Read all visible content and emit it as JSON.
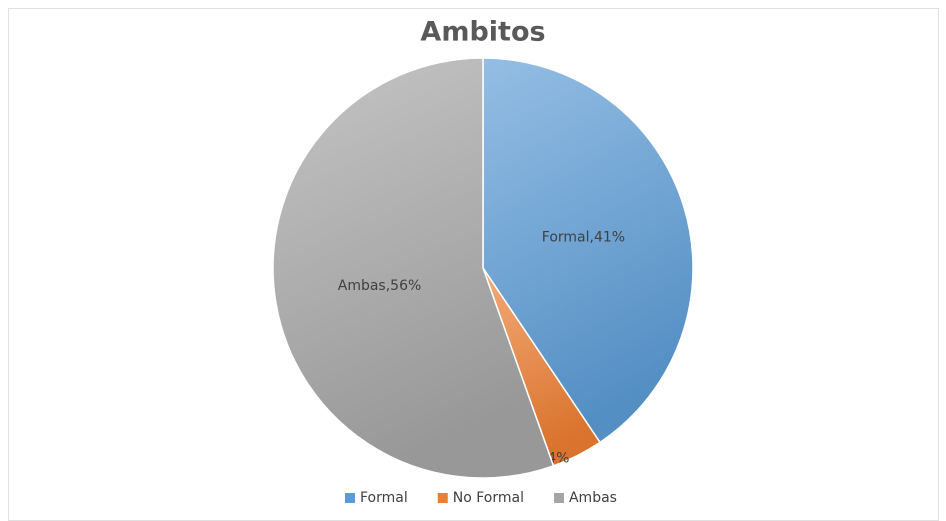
{
  "chart_data": {
    "type": "pie",
    "title": "Ambitos",
    "categories": [
      "Formal",
      "No Formal",
      "Ambas"
    ],
    "values": [
      41,
      4,
      56
    ],
    "value_labels": [
      "Formal,41%",
      "No Formal,4%",
      "Ambas,56%"
    ],
    "colors": [
      "#5b9bd5",
      "#ed7d31",
      "#a5a5a5"
    ],
    "legend": "bottom"
  }
}
